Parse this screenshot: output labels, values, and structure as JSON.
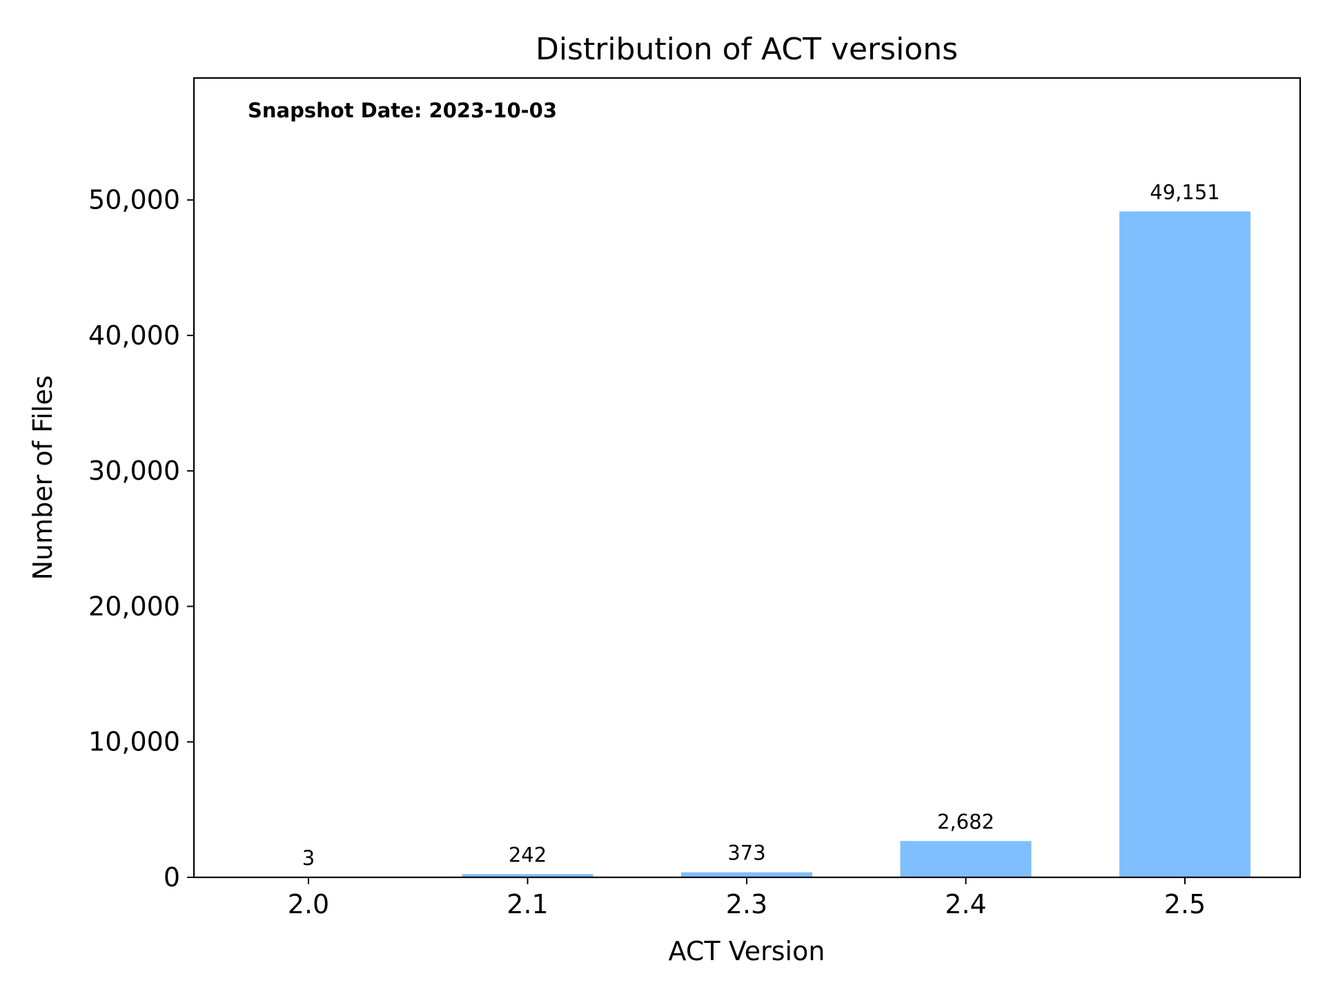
{
  "chart_data": {
    "type": "bar",
    "title": "Distribution of ACT versions",
    "xlabel": "ACT Version",
    "ylabel": "Number of Files",
    "categories": [
      "2.0",
      "2.1",
      "2.3",
      "2.4",
      "2.5"
    ],
    "values": [
      3,
      242,
      373,
      2682,
      49151
    ],
    "value_labels": [
      "3",
      "242",
      "373",
      "2,682",
      "49,151"
    ],
    "yticks": [
      0,
      10000,
      20000,
      30000,
      40000,
      50000
    ],
    "ytick_labels": [
      "0",
      "10,000",
      "20,000",
      "30,000",
      "40,000",
      "50,000"
    ],
    "ylim": [
      0,
      59000
    ],
    "annotation": "Snapshot Date: 2023-10-03",
    "grid": false,
    "legend": "none",
    "bar_color": "#7fbfff"
  }
}
